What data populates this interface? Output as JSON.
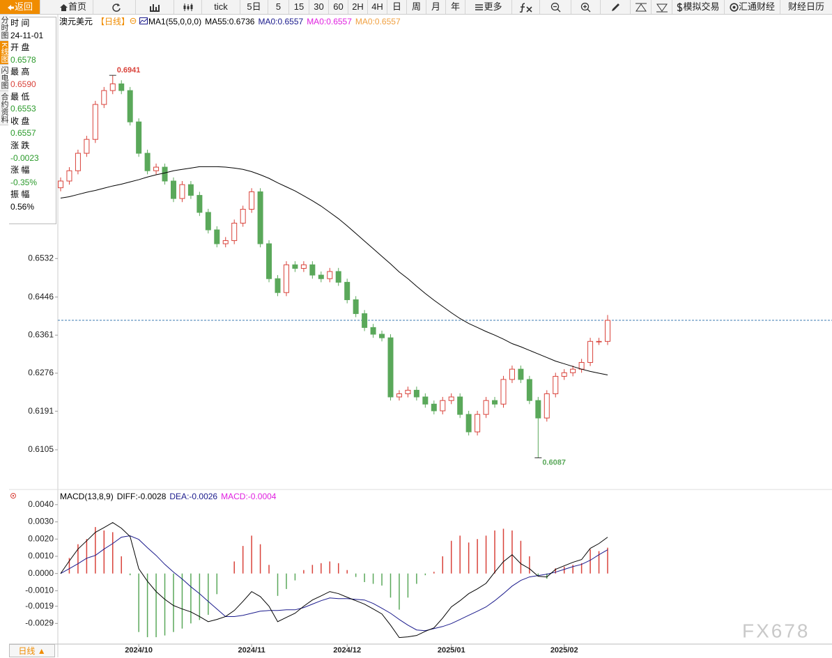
{
  "toolbar": {
    "back": "返回",
    "home": "首页",
    "periods": [
      "tick",
      "5日",
      "5",
      "15",
      "30",
      "60",
      "2H",
      "4H",
      "日",
      "周",
      "月",
      "年"
    ],
    "more": "更多",
    "right": [
      "模拟交易",
      "汇通财经",
      "财经日历"
    ]
  },
  "side_tabs": {
    "items": [
      "分时图",
      "K线图",
      "闪电图",
      "合约资料"
    ],
    "active": 1
  },
  "info_panel": {
    "rows": [
      {
        "label": "时 间",
        "value": "24-11-01",
        "color": "#000"
      },
      {
        "label": "开 盘",
        "value": "0.6578",
        "color": "#2a9a2a"
      },
      {
        "label": "最 高",
        "value": "0.6590",
        "color": "#d9423a"
      },
      {
        "label": "最 低",
        "value": "0.6553",
        "color": "#2a9a2a"
      },
      {
        "label": "收 盘",
        "value": "0.6557",
        "color": "#2a9a2a"
      },
      {
        "label": "涨 跌",
        "value": "-0.0023",
        "color": "#2a9a2a"
      },
      {
        "label": "涨 幅",
        "value": "-0.35%",
        "color": "#2a9a2a"
      },
      {
        "label": "振 幅",
        "value": "0.56%",
        "color": "#000"
      }
    ]
  },
  "chart_data": {
    "type": "candlestick",
    "symbol": "澳元美元",
    "period": "【日线】",
    "legend": [
      {
        "text": "MA1(55,0,0,0)",
        "color": "#000"
      },
      {
        "text": "MA55:0.6736",
        "color": "#000"
      },
      {
        "text": "MA0:0.6557",
        "color": "#1a1a8c"
      },
      {
        "text": "MA0:0.6557",
        "color": "#e020e0"
      },
      {
        "text": "MA0:0.6557",
        "color": "#f0a040"
      }
    ],
    "up_color": "#d9423a",
    "down_color": "#5aa85a",
    "last_close_line": true,
    "last_close_color": "#3a78b0",
    "categories": [
      null,
      null,
      null,
      null,
      null,
      null,
      null,
      null,
      null,
      "2024/10",
      null,
      null,
      null,
      null,
      null,
      null,
      null,
      null,
      null,
      null,
      null,
      null,
      "2024/11",
      null,
      null,
      null,
      null,
      null,
      null,
      null,
      null,
      null,
      null,
      "2024/12",
      null,
      null,
      null,
      null,
      null,
      null,
      null,
      null,
      null,
      null,
      null,
      "2025/01",
      null,
      null,
      null,
      null,
      null,
      null,
      null,
      null,
      null,
      null,
      null,
      null,
      "2025/02",
      null,
      null,
      null,
      null,
      null
    ],
    "open": [
      0.669,
      0.6705,
      0.6728,
      0.6767,
      0.6798,
      0.6876,
      0.6907,
      0.6922,
      0.6907,
      0.6837,
      0.6767,
      0.6728,
      0.6736,
      0.6705,
      0.6666,
      0.6697,
      0.6673,
      0.6635,
      0.6596,
      0.6565,
      0.6572,
      0.6611,
      0.6642,
      0.6681,
      0.6565,
      0.6487,
      0.6456,
      0.6518,
      0.651,
      0.6518,
      0.6495,
      0.6487,
      0.6503,
      0.6479,
      0.644,
      0.6409,
      0.6378,
      0.6363,
      0.6355,
      0.6223,
      0.623,
      0.6238,
      0.6223,
      0.6207,
      0.6192,
      0.6215,
      0.6223,
      0.6184,
      0.6145,
      0.6184,
      0.6215,
      0.6207,
      0.6262,
      0.6285,
      0.6262,
      0.6215,
      0.6176,
      0.623,
      0.6269,
      0.6277,
      0.6285,
      0.63,
      0.6347,
      0.6347
    ],
    "high": [
      0.6713,
      0.6736,
      0.6775,
      0.6806,
      0.6884,
      0.6915,
      0.6941,
      0.693,
      0.6915,
      0.6845,
      0.6775,
      0.6744,
      0.6744,
      0.6713,
      0.6705,
      0.6705,
      0.6681,
      0.6643,
      0.6604,
      0.658,
      0.6619,
      0.665,
      0.6689,
      0.6689,
      0.6573,
      0.6495,
      0.6526,
      0.6526,
      0.6526,
      0.6526,
      0.6503,
      0.6511,
      0.6511,
      0.6487,
      0.6448,
      0.6417,
      0.6386,
      0.6371,
      0.6363,
      0.6238,
      0.6246,
      0.6246,
      0.6231,
      0.6215,
      0.6223,
      0.6231,
      0.6231,
      0.6192,
      0.6192,
      0.6223,
      0.6223,
      0.627,
      0.6293,
      0.6293,
      0.627,
      0.6223,
      0.6238,
      0.6277,
      0.6285,
      0.6293,
      0.6308,
      0.6355,
      0.6355,
      0.6406
    ],
    "low": [
      0.6682,
      0.6697,
      0.672,
      0.6759,
      0.679,
      0.6868,
      0.6899,
      0.6899,
      0.6829,
      0.6759,
      0.672,
      0.672,
      0.6697,
      0.6658,
      0.6658,
      0.6665,
      0.6627,
      0.6588,
      0.6557,
      0.6557,
      0.6564,
      0.6603,
      0.6634,
      0.6557,
      0.6479,
      0.6448,
      0.6448,
      0.6502,
      0.6502,
      0.6487,
      0.6479,
      0.6479,
      0.6471,
      0.6432,
      0.6401,
      0.637,
      0.6355,
      0.6347,
      0.6215,
      0.6215,
      0.6222,
      0.6215,
      0.6199,
      0.6184,
      0.6184,
      0.6207,
      0.6176,
      0.6137,
      0.6137,
      0.6176,
      0.6199,
      0.6199,
      0.6254,
      0.6254,
      0.6207,
      0.6087,
      0.6168,
      0.6222,
      0.6261,
      0.6269,
      0.6277,
      0.6292,
      0.6339,
      0.6339
    ],
    "close": [
      0.6705,
      0.6728,
      0.6767,
      0.6798,
      0.6876,
      0.6907,
      0.6922,
      0.6907,
      0.6837,
      0.6767,
      0.6728,
      0.6736,
      0.6705,
      0.6666,
      0.6697,
      0.6673,
      0.6635,
      0.6596,
      0.6565,
      0.6572,
      0.6611,
      0.6642,
      0.6681,
      0.6565,
      0.6487,
      0.6456,
      0.6518,
      0.651,
      0.6518,
      0.6495,
      0.6487,
      0.6503,
      0.6479,
      0.644,
      0.6409,
      0.6378,
      0.6363,
      0.6355,
      0.6223,
      0.623,
      0.6238,
      0.6223,
      0.6207,
      0.6192,
      0.6215,
      0.6223,
      0.6184,
      0.6145,
      0.6184,
      0.6215,
      0.6207,
      0.6262,
      0.6285,
      0.6262,
      0.6215,
      0.6176,
      0.623,
      0.6269,
      0.6277,
      0.6285,
      0.63,
      0.6347,
      0.6347,
      0.6394
    ],
    "ma": {
      "color": "#000",
      "values": [
        0.6667,
        0.667,
        0.6675,
        0.668,
        0.6684,
        0.6689,
        0.6694,
        0.6698,
        0.6703,
        0.6708,
        0.6714,
        0.6719,
        0.6723,
        0.6728,
        0.6731,
        0.6734,
        0.6737,
        0.6737,
        0.6737,
        0.6736,
        0.6734,
        0.6731,
        0.6726,
        0.6719,
        0.6711,
        0.6701,
        0.6692,
        0.6683,
        0.6672,
        0.6661,
        0.6649,
        0.6635,
        0.6621,
        0.6605,
        0.6588,
        0.6571,
        0.6554,
        0.6537,
        0.652,
        0.6502,
        0.6487,
        0.647,
        0.6454,
        0.6439,
        0.6425,
        0.6411,
        0.6398,
        0.6387,
        0.6378,
        0.6369,
        0.6361,
        0.6352,
        0.6342,
        0.6335,
        0.6327,
        0.6319,
        0.6311,
        0.6303,
        0.6297,
        0.6291,
        0.6285,
        0.628,
        0.6276,
        0.6272
      ]
    },
    "ylim": [
      0.6021,
      0.7047
    ],
    "yticks": [
      0.6532,
      0.6446,
      0.6361,
      0.6276,
      0.6191,
      0.6105
    ],
    "macd": {
      "type": "macd",
      "legend": [
        {
          "text": "MACD(13,8,9)",
          "color": "#000"
        },
        {
          "text": "DIFF:-0.0028",
          "color": "#000"
        },
        {
          "text": "DEA:-0.0026",
          "color": "#1a1a8c"
        },
        {
          "text": "MACD:-0.0004",
          "color": "#e020e0"
        }
      ],
      "ylim": [
        -0.0041,
        0.0048
      ],
      "yticks": [
        {
          "value": 0.004,
          "label": "0.0040"
        },
        {
          "value": 0.003,
          "label": "0.0030"
        },
        {
          "value": 0.002,
          "label": "0.0020"
        },
        {
          "value": 0.001,
          "label": "0.0010"
        },
        {
          "value": 0,
          "label": "0.0000"
        },
        {
          "value": -0.001,
          "label": "-0.0010"
        },
        -0.0019,
        -0.0029
      ],
      "diff": {
        "color": "#000",
        "values": [
          0,
          0.00073,
          0.00142,
          0.0019,
          0.00239,
          0.00267,
          0.00296,
          0.00263,
          0.00215,
          0.00028,
          -0.00045,
          -0.00105,
          -0.0015,
          -0.00186,
          -0.00206,
          -0.00223,
          -0.0025,
          -0.0028,
          -0.00267,
          -0.0025,
          -0.00215,
          -0.00162,
          -0.00105,
          -0.00134,
          -0.0019,
          -0.0028,
          -0.00255,
          -0.00231,
          -0.0019,
          -0.00154,
          -0.0013,
          -0.00105,
          -0.00117,
          -0.00138,
          -0.00158,
          -0.00178,
          -0.00206,
          -0.00235,
          -0.003,
          -0.00372,
          -0.00368,
          -0.0036,
          -0.00336,
          -0.00316,
          -0.00259,
          -0.00194,
          -0.00158,
          -0.00117,
          -0.00089,
          -0.00057,
          8e-05,
          0.00069,
          0.00109,
          0.00057,
          0.00028,
          -0.00016,
          -0.0002,
          0.00024,
          0.00045,
          0.00065,
          0.00081,
          0.00146,
          0.00174,
          0.00211
        ]
      },
      "dea": {
        "color": "#1a1a8c",
        "values": [
          0,
          0.00028,
          0.00057,
          0.00089,
          0.00105,
          0.00142,
          0.00174,
          0.00211,
          0.00219,
          0.00198,
          0.0015,
          0.00105,
          0.00053,
          8e-05,
          -0.00032,
          -0.00077,
          -0.00117,
          -0.00162,
          -0.00206,
          -0.0025,
          -0.0025,
          -0.00243,
          -0.00231,
          -0.00219,
          -0.00215,
          -0.00215,
          -0.00211,
          -0.00211,
          -0.00198,
          -0.00178,
          -0.00158,
          -0.00142,
          -0.00146,
          -0.00146,
          -0.0015,
          -0.00154,
          -0.00174,
          -0.00202,
          -0.00231,
          -0.00267,
          -0.003,
          -0.00328,
          -0.00332,
          -0.0032,
          -0.00308,
          -0.00291,
          -0.00267,
          -0.00243,
          -0.00219,
          -0.00194,
          -0.00158,
          -0.00117,
          -0.00073,
          -0.0004,
          -0.0002,
          -0.00012,
          -4e-05,
          8e-05,
          0.00024,
          0.0004,
          0.00053,
          0.00077,
          0.00109,
          0.00138
        ]
      },
      "hist": {
        "up_color": "#d9423a",
        "down_color": "#5aa85a",
        "values": [
          0,
          0.0009,
          0.0017,
          0.002,
          0.0027,
          0.0025,
          0.0024,
          0.001,
          -0.0001,
          -0.0034,
          -0.0037,
          -0.0037,
          -0.0036,
          -0.0034,
          -0.0032,
          -0.0029,
          -0.0027,
          -0.0024,
          -0.0012,
          0,
          0.0007,
          0.0016,
          0.0022,
          0.0017,
          0.0005,
          -0.0013,
          -0.0009,
          -0.0004,
          0.0002,
          0.0005,
          0.0006,
          0.0007,
          0.0006,
          0.0002,
          -0.0002,
          -0.0005,
          -0.0006,
          -0.0007,
          -0.0014,
          -0.0021,
          -0.0014,
          -0.0006,
          -0.0001,
          0.0001,
          0.001,
          0.0019,
          0.0022,
          0.0018,
          0.002,
          0.0022,
          0.0025,
          0.0026,
          0.0025,
          0.0019,
          0.001,
          -0.0001,
          -0.0003,
          0.0003,
          0.0004,
          0.0005,
          0.0006,
          0.0014,
          0.0013,
          0.0015
        ]
      }
    }
  },
  "footer": {
    "period": "日线 ▲"
  },
  "watermark": "FX678"
}
